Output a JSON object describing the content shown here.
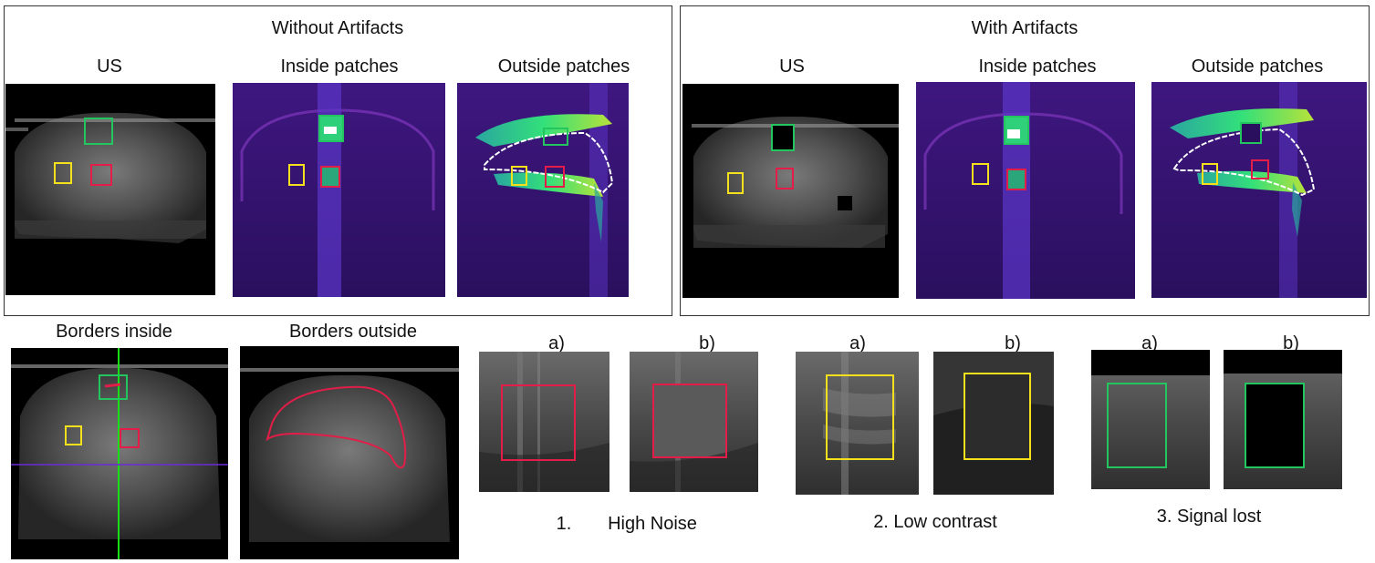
{
  "figure": {
    "panel_left": {
      "title": "Without Artifacts",
      "labels": [
        "US",
        "Inside patches",
        "Outside patches"
      ]
    },
    "panel_right": {
      "title": "With Artifacts",
      "labels": [
        "US",
        "Inside patches",
        "Outside patches"
      ]
    },
    "bottom": {
      "borders_inside": "Borders inside",
      "borders_outside": "Borders outside",
      "sub_a": "a)",
      "sub_b": "b)",
      "caption_1_num": "1.",
      "caption_1_text": "High Noise",
      "caption_2": "2. Low contrast",
      "caption_3": "3. Signal lost"
    }
  },
  "colors": {
    "box_green": "#22c55e",
    "box_red": "#e11d48",
    "box_yellow": "#f5e11b",
    "heat_bg": "#4a1a8a",
    "crosshair_green": "#16e016",
    "crosshair_purple": "#6a2bd6"
  }
}
